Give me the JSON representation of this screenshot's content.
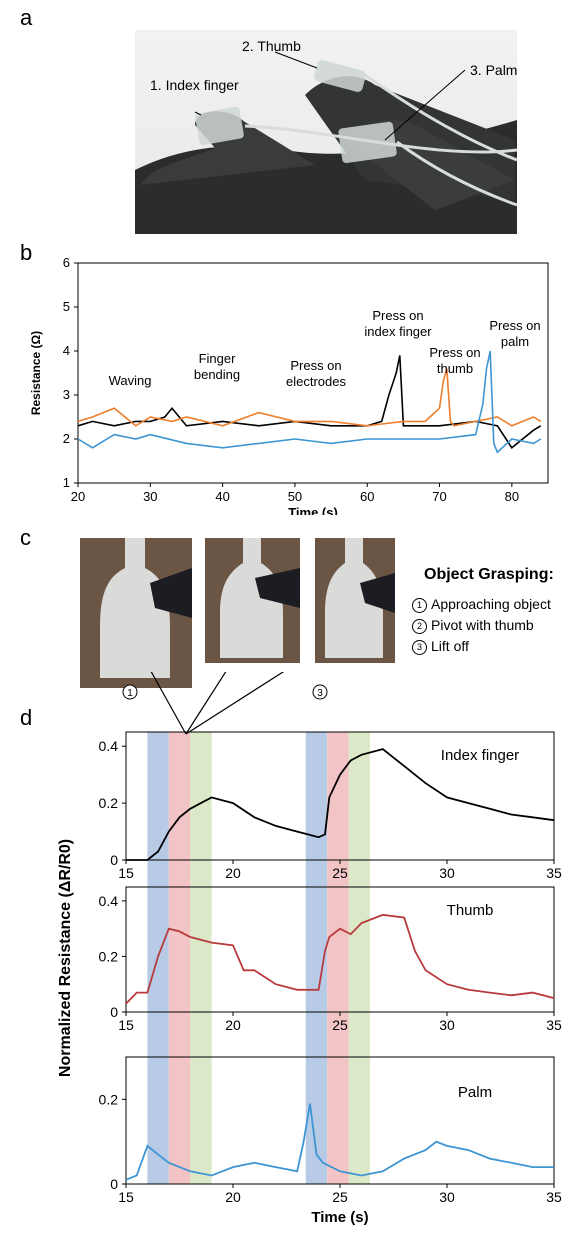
{
  "panels": {
    "a": "a",
    "b": "b",
    "c": "c",
    "d": "d"
  },
  "panel_a": {
    "labels": {
      "index": "1. Index finger",
      "thumb": "2. Thumb",
      "palm": "3. Palm"
    }
  },
  "panel_c": {
    "title": "Object Grasping:",
    "steps": [
      {
        "num": "1",
        "text": "Approaching object"
      },
      {
        "num": "2",
        "text": "Pivot with thumb"
      },
      {
        "num": "3",
        "text": "Lift off"
      }
    ]
  },
  "colors": {
    "black": "#000000",
    "orange": "#ee7f2d",
    "blue": "#3d95d3",
    "red": "#b83a3d",
    "band_blue": "#9fb9dd",
    "band_red": "#efb0b3",
    "band_green": "#cfe2b5"
  },
  "chart_data": [
    {
      "type": "line",
      "panel": "b",
      "xlabel": "Time (s)",
      "ylabel": "Resistance (Ω)",
      "xlim": [
        20,
        85
      ],
      "ylim": [
        1,
        6
      ],
      "xticks": [
        "20",
        "30",
        "40",
        "50",
        "60",
        "70",
        "80"
      ],
      "yticks": [
        "1",
        "2",
        "3",
        "4",
        "5",
        "6"
      ],
      "annotations": [
        "Waving",
        "Finger bending",
        "Press on electrodes",
        "Press on index finger",
        "Press on thumb",
        "Press on palm"
      ],
      "series": [
        {
          "color": "black",
          "x": [
            20,
            22,
            25,
            28,
            30,
            32,
            33,
            35,
            40,
            45,
            50,
            55,
            60,
            62,
            63,
            64,
            64.5,
            65,
            66,
            70,
            75,
            78,
            80,
            83,
            84
          ],
          "y": [
            2.3,
            2.4,
            2.3,
            2.4,
            2.4,
            2.5,
            2.7,
            2.3,
            2.4,
            2.3,
            2.4,
            2.3,
            2.3,
            2.4,
            3.0,
            3.5,
            3.9,
            2.3,
            2.3,
            2.3,
            2.4,
            2.3,
            1.8,
            2.2,
            2.3
          ]
        },
        {
          "color": "orange",
          "x": [
            20,
            22,
            25,
            28,
            30,
            33,
            35,
            40,
            45,
            50,
            55,
            60,
            65,
            68,
            70,
            70.5,
            71,
            71.5,
            72,
            75,
            78,
            80,
            83,
            84
          ],
          "y": [
            2.4,
            2.5,
            2.7,
            2.3,
            2.5,
            2.4,
            2.5,
            2.3,
            2.6,
            2.4,
            2.4,
            2.3,
            2.4,
            2.4,
            2.7,
            3.3,
            3.6,
            2.4,
            2.3,
            2.4,
            2.5,
            2.3,
            2.5,
            2.4
          ]
        },
        {
          "color": "blue",
          "x": [
            20,
            22,
            25,
            28,
            30,
            35,
            40,
            45,
            50,
            55,
            60,
            65,
            70,
            75,
            76,
            76.5,
            77,
            77.5,
            78,
            80,
            83,
            84
          ],
          "y": [
            2.0,
            1.8,
            2.1,
            2.0,
            2.1,
            1.9,
            1.8,
            1.9,
            2.0,
            1.9,
            2.0,
            2.0,
            2.0,
            2.1,
            2.8,
            3.6,
            4.0,
            1.9,
            1.7,
            2.0,
            1.9,
            2.0
          ]
        }
      ]
    },
    {
      "type": "line",
      "panel": "d",
      "xlabel": "Time (s)",
      "ylabel": "Normalized Resistance (ΔR/R0)",
      "xlim": [
        15,
        35
      ],
      "subplots": [
        {
          "name": "Index finger",
          "ylim": [
            0,
            0.45
          ],
          "yticks": [
            "0",
            "0.2",
            "0.4"
          ],
          "color": "black",
          "x": [
            15,
            16,
            16.5,
            17,
            17.5,
            18,
            18.5,
            19,
            20,
            21,
            22,
            23,
            23.5,
            24,
            24.3,
            24.5,
            25,
            25.5,
            26,
            27,
            28,
            29,
            30,
            31,
            32,
            33,
            34,
            35
          ],
          "y": [
            0,
            0,
            0.03,
            0.1,
            0.15,
            0.18,
            0.2,
            0.22,
            0.2,
            0.15,
            0.12,
            0.1,
            0.09,
            0.08,
            0.09,
            0.22,
            0.3,
            0.35,
            0.37,
            0.39,
            0.33,
            0.27,
            0.22,
            0.2,
            0.18,
            0.16,
            0.15,
            0.14
          ]
        },
        {
          "name": "Thumb",
          "ylim": [
            0,
            0.45
          ],
          "yticks": [
            "0",
            "0.2",
            "0.4"
          ],
          "color": "red",
          "x": [
            15,
            15.5,
            16,
            16.5,
            17,
            17.5,
            18,
            19,
            20,
            20.5,
            21,
            22,
            23,
            23.5,
            24,
            24.3,
            24.5,
            25,
            25.5,
            26,
            27,
            28,
            28.5,
            29,
            30,
            31,
            32,
            33,
            34,
            35
          ],
          "y": [
            0.03,
            0.07,
            0.07,
            0.2,
            0.3,
            0.29,
            0.27,
            0.25,
            0.24,
            0.15,
            0.15,
            0.1,
            0.08,
            0.08,
            0.08,
            0.22,
            0.27,
            0.3,
            0.28,
            0.32,
            0.35,
            0.34,
            0.22,
            0.15,
            0.1,
            0.08,
            0.07,
            0.06,
            0.07,
            0.05
          ]
        },
        {
          "name": "Palm",
          "ylim": [
            0,
            0.3
          ],
          "yticks": [
            "0",
            "0.2"
          ],
          "color": "blue",
          "x": [
            15,
            15.5,
            16,
            16.5,
            17,
            17.5,
            18,
            19,
            20,
            21,
            22,
            23,
            23.3,
            23.6,
            23.9,
            24.2,
            25,
            26,
            27,
            28,
            29,
            29.5,
            30,
            31,
            32,
            33,
            34,
            35
          ],
          "y": [
            0.01,
            0.02,
            0.09,
            0.07,
            0.05,
            0.04,
            0.03,
            0.02,
            0.04,
            0.05,
            0.04,
            0.03,
            0.1,
            0.19,
            0.07,
            0.05,
            0.03,
            0.02,
            0.03,
            0.06,
            0.08,
            0.1,
            0.09,
            0.08,
            0.06,
            0.05,
            0.04,
            0.04
          ]
        }
      ],
      "bands": [
        {
          "x0": 16,
          "x1": 17,
          "color": "band_blue"
        },
        {
          "x0": 17,
          "x1": 18,
          "color": "band_red"
        },
        {
          "x0": 18,
          "x1": 19,
          "color": "band_green"
        },
        {
          "x0": 23.4,
          "x1": 24.4,
          "color": "band_blue"
        },
        {
          "x0": 24.4,
          "x1": 25.4,
          "color": "band_red"
        },
        {
          "x0": 25.4,
          "x1": 26.4,
          "color": "band_green"
        }
      ],
      "markers": [
        "1",
        "2",
        "3"
      ]
    }
  ]
}
